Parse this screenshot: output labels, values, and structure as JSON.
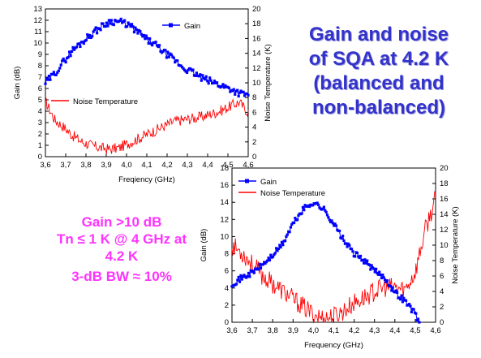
{
  "title_lines": [
    "Gain and noise",
    "of SQA at 4.2 K",
    "(balanced and",
    "non-balanced)"
  ],
  "summary_lines": [
    "Gain >10 dB",
    "Tn ≤ 1 K @ 4 GHz at",
    "4.2 K",
    "3-dB BW ≈ 10%"
  ],
  "colors": {
    "gain": "#0000ff",
    "noise": "#ff0000",
    "title": "#3333cc",
    "summary": "#ff33ff"
  },
  "chart_data": [
    {
      "type": "line",
      "xlabel": "Freqiency (GHz)",
      "ylabel": "Gain (dB)",
      "y2label": "Noise Temperature (K)",
      "xlim": [
        3.6,
        4.7
      ],
      "ylim": [
        0,
        13
      ],
      "y2lim": [
        0,
        20
      ],
      "xticks": [
        "3,6",
        "3,7",
        "3,8",
        "3,9",
        "4,0",
        "4,1",
        "4,2",
        "4,3",
        "4,4",
        "4,5",
        "4,6"
      ],
      "yticks": [
        "0",
        "1",
        "2",
        "3",
        "4",
        "5",
        "6",
        "7",
        "8",
        "9",
        "10",
        "11",
        "12",
        "13"
      ],
      "y2ticks": [
        "0",
        "2",
        "4",
        "6",
        "8",
        "10",
        "12",
        "14",
        "16",
        "18",
        "20"
      ],
      "grid": false,
      "legend": [
        {
          "label": "Gain",
          "position": "top-right"
        },
        {
          "label": "Noise Temperature",
          "position": "center-left"
        }
      ],
      "series": [
        {
          "name": "Gain",
          "axis": "left",
          "marker": "square",
          "x": [
            3.6,
            3.65,
            3.7,
            3.75,
            3.8,
            3.85,
            3.9,
            3.95,
            4.0,
            4.05,
            4.1,
            4.15,
            4.2,
            4.25,
            4.3,
            4.35,
            4.4,
            4.45,
            4.5,
            4.55,
            4.6,
            4.65,
            4.7
          ],
          "y": [
            6.5,
            7.3,
            8.4,
            9.4,
            10.1,
            10.8,
            11.4,
            11.9,
            11.9,
            11.6,
            11.0,
            10.3,
            9.8,
            9.1,
            8.5,
            7.8,
            7.4,
            6.9,
            6.6,
            6.3,
            6.0,
            5.6,
            5.4
          ]
        },
        {
          "name": "Noise Temperature",
          "axis": "right",
          "x": [
            3.6,
            3.65,
            3.7,
            3.75,
            3.8,
            3.85,
            3.9,
            3.95,
            4.0,
            4.05,
            4.1,
            4.15,
            4.2,
            4.25,
            4.3,
            4.35,
            4.4,
            4.45,
            4.5,
            4.55,
            4.6,
            4.65,
            4.7
          ],
          "y": [
            7.5,
            5.0,
            4.0,
            2.8,
            2.0,
            1.5,
            1.2,
            1.0,
            1.2,
            1.8,
            2.4,
            3.0,
            3.6,
            4.2,
            4.8,
            5.0,
            5.2,
            5.4,
            5.8,
            6.2,
            6.8,
            7.4,
            6.0
          ]
        }
      ]
    },
    {
      "type": "line",
      "xlabel": "Frequency (GHz)",
      "ylabel": "Gain (dB)",
      "y2label": "Noise Temperature (K)",
      "xlim": [
        3.6,
        4.6
      ],
      "ylim": [
        0,
        18
      ],
      "y2lim": [
        0,
        20
      ],
      "xticks": [
        "3,6",
        "3,7",
        "3,8",
        "3,9",
        "4,0",
        "4,1",
        "4,2",
        "4,3",
        "4,4",
        "4,5",
        "4,6"
      ],
      "yticks": [
        "0",
        "2",
        "4",
        "6",
        "8",
        "10",
        "12",
        "14",
        "16",
        "18"
      ],
      "y2ticks": [
        "0",
        "2",
        "4",
        "6",
        "8",
        "10",
        "12",
        "14",
        "16",
        "18",
        "20"
      ],
      "grid": false,
      "legend": [
        {
          "label": "Gain",
          "position": "top-left"
        },
        {
          "label": "Noise Temperature",
          "position": "top-left"
        }
      ],
      "series": [
        {
          "name": "Gain",
          "axis": "left",
          "marker": "square",
          "x": [
            3.6,
            3.65,
            3.7,
            3.75,
            3.8,
            3.85,
            3.9,
            3.95,
            4.0,
            4.05,
            4.1,
            4.15,
            4.2,
            4.25,
            4.3,
            4.35,
            4.4,
            4.45,
            4.5,
            4.52
          ],
          "y": [
            4.5,
            5.2,
            5.8,
            6.7,
            7.8,
            9.2,
            11.5,
            13.2,
            14.0,
            13.2,
            11.5,
            9.5,
            8.0,
            7.2,
            6.0,
            5.2,
            3.5,
            2.5,
            1.0,
            0.0
          ]
        },
        {
          "name": "Noise Temperature",
          "axis": "right",
          "x": [
            3.6,
            3.65,
            3.7,
            3.75,
            3.8,
            3.85,
            3.9,
            3.95,
            4.0,
            4.05,
            4.1,
            4.15,
            4.2,
            4.25,
            4.3,
            4.35,
            4.4,
            4.45,
            4.5,
            4.55,
            4.6
          ],
          "y": [
            10.0,
            9.0,
            7.5,
            6.0,
            5.0,
            4.0,
            3.0,
            2.0,
            1.0,
            0.5,
            0.8,
            1.5,
            2.5,
            3.2,
            4.0,
            4.5,
            4.5,
            4.2,
            6.5,
            12.0,
            16.0
          ]
        }
      ]
    }
  ]
}
